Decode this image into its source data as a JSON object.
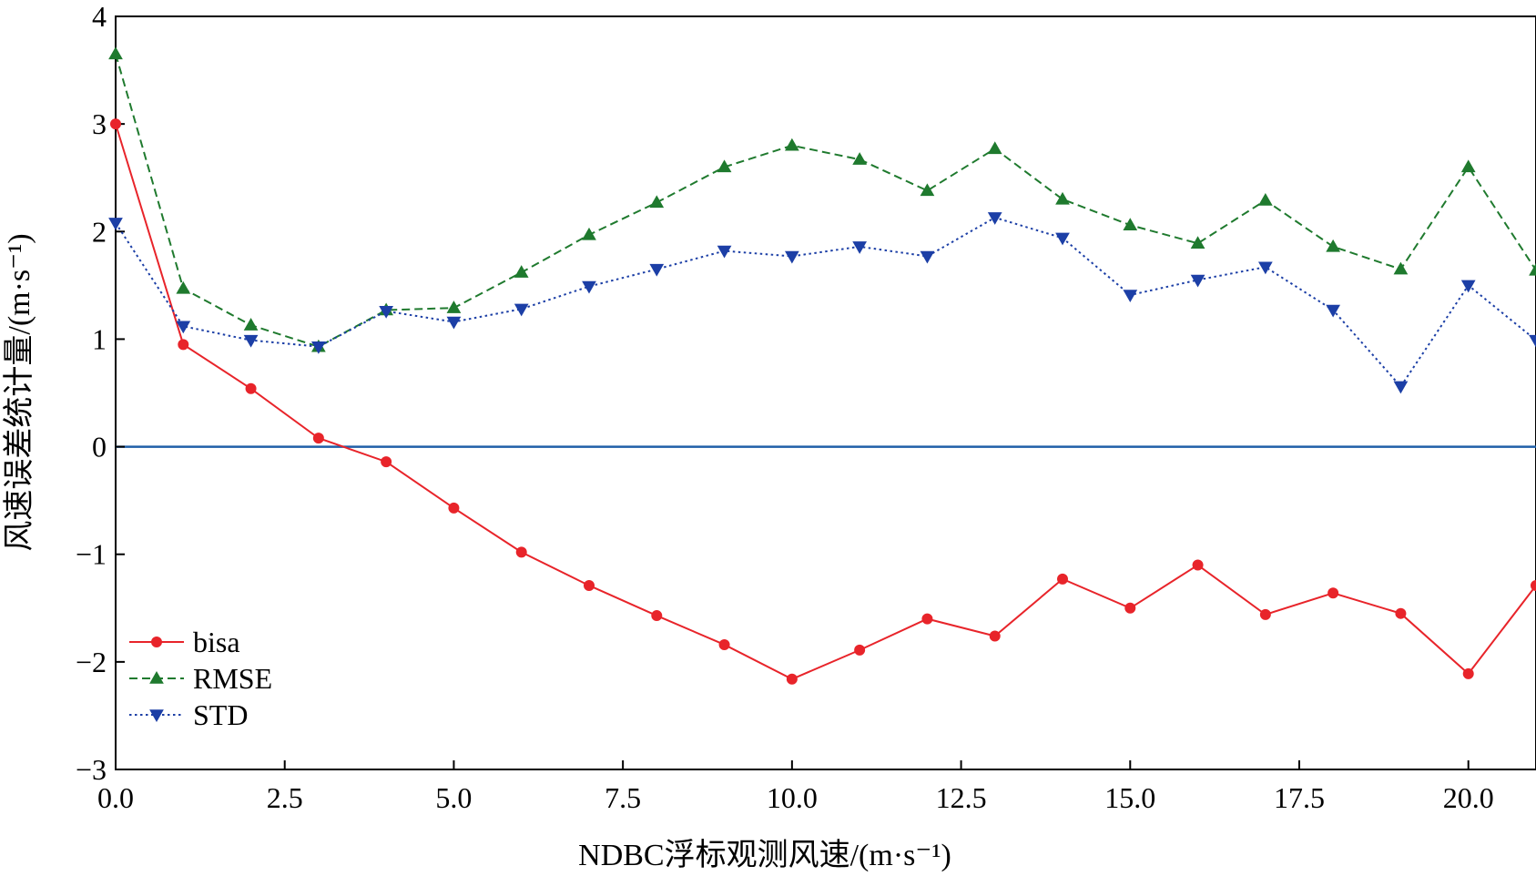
{
  "chart_data": {
    "type": "line",
    "xlabel": "NDBC浮标观测风速/(m·s⁻¹)",
    "ylabel": "风速误差统计量/(m·s⁻¹)",
    "xlim": [
      0,
      21
    ],
    "ylim": [
      -3,
      4
    ],
    "x_ticks": [
      "0.0",
      "2.5",
      "5.0",
      "7.5",
      "10.0",
      "12.5",
      "15.0",
      "17.5",
      "20.0"
    ],
    "x_tick_values": [
      0,
      2.5,
      5,
      7.5,
      10,
      12.5,
      15,
      17.5,
      20
    ],
    "y_ticks": [
      "−3",
      "−2",
      "−1",
      "0",
      "1",
      "2",
      "3",
      "4"
    ],
    "y_tick_values": [
      -3,
      -2,
      -1,
      0,
      1,
      2,
      3,
      4
    ],
    "reference_line": {
      "y": 0,
      "color": "#1f5fa8"
    },
    "legend_position": "lower-left",
    "x": [
      0,
      1,
      2,
      3,
      4,
      5,
      6,
      7,
      8,
      9,
      10,
      11,
      12,
      13,
      14,
      15,
      16,
      17,
      18,
      19,
      20,
      21
    ],
    "series": [
      {
        "name": "bisa",
        "color": "#e8242a",
        "style": "solid",
        "marker": "circle",
        "values": [
          3.0,
          0.95,
          0.54,
          0.08,
          -0.14,
          -0.57,
          -0.98,
          -1.29,
          -1.57,
          -1.84,
          -2.16,
          -1.89,
          -1.6,
          -1.76,
          -1.23,
          -1.5,
          -1.1,
          -1.56,
          -1.36,
          -1.55,
          -2.11,
          -1.29
        ]
      },
      {
        "name": "RMSE",
        "color": "#1f7a2e",
        "style": "dashed",
        "marker": "triangle-up",
        "values": [
          3.65,
          1.47,
          1.13,
          0.93,
          1.27,
          1.29,
          1.62,
          1.97,
          2.27,
          2.6,
          2.8,
          2.67,
          2.38,
          2.77,
          2.3,
          2.06,
          1.89,
          2.29,
          1.86,
          1.65,
          2.6,
          1.64
        ]
      },
      {
        "name": "STD",
        "color": "#1c3fa6",
        "style": "dotted",
        "marker": "triangle-down",
        "values": [
          2.08,
          1.12,
          0.99,
          0.93,
          1.26,
          1.16,
          1.28,
          1.49,
          1.65,
          1.82,
          1.77,
          1.86,
          1.77,
          2.13,
          1.94,
          1.41,
          1.55,
          1.67,
          1.27,
          0.56,
          1.5,
          0.99
        ]
      }
    ]
  }
}
